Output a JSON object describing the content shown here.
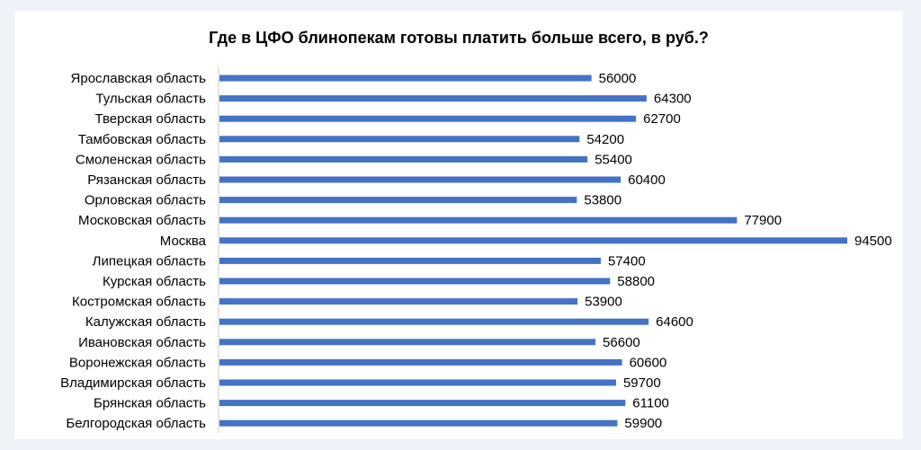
{
  "colors": {
    "bar": "#4472c4",
    "axis": "#c8c8c8",
    "background": "#eef2f9"
  },
  "chart_data": {
    "type": "bar",
    "orientation": "horizontal",
    "title": "Где в ЦФО блинопекам готовы платить больше всего, в руб.?",
    "categories": [
      "Ярославская область",
      "Тульская область",
      "Тверская область",
      "Тамбовская область",
      "Смоленская область",
      "Рязанская область",
      "Орловская область",
      "Московская область",
      "Москва",
      "Липецкая область",
      "Курская область",
      "Костромская область",
      "Калужская область",
      "Ивановская область",
      "Воронежская область",
      "Владимирская область",
      "Брянская область",
      "Белгородская область"
    ],
    "values": [
      56000,
      64300,
      62700,
      54200,
      55400,
      60400,
      53800,
      77900,
      94500,
      57400,
      58800,
      53900,
      64600,
      56600,
      60600,
      59700,
      61100,
      59900
    ],
    "xlim": [
      0,
      94500
    ],
    "grid": false,
    "legend": "none",
    "data_labels": true
  }
}
